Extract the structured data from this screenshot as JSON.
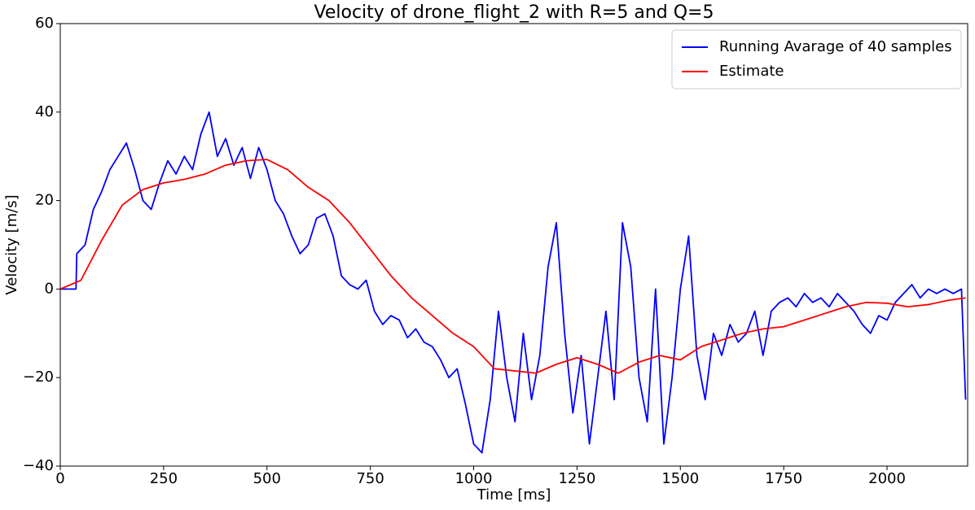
{
  "chart_data": {
    "type": "line",
    "title": "Velocity of drone_flight_2 with R=5 and Q=5",
    "xlabel": "Time [ms]",
    "ylabel": "Velocity [m/s]",
    "xlim": [
      0,
      2195
    ],
    "ylim": [
      -40,
      60
    ],
    "xticks": [
      0,
      250,
      500,
      750,
      1000,
      1250,
      1500,
      1750,
      2000
    ],
    "yticks": [
      {
        "value": -40,
        "label": "−40"
      },
      {
        "value": -20,
        "label": "−20"
      },
      0,
      20,
      40,
      60
    ],
    "legend": "upper right",
    "series": [
      {
        "name": "Running Avarage of 40 samples",
        "color": "#0000ff",
        "x": [
          0,
          20,
          38,
          40,
          60,
          80,
          100,
          120,
          140,
          160,
          180,
          200,
          220,
          240,
          260,
          280,
          300,
          320,
          340,
          360,
          380,
          400,
          420,
          440,
          460,
          480,
          500,
          520,
          540,
          560,
          580,
          600,
          620,
          640,
          660,
          680,
          700,
          720,
          740,
          760,
          780,
          800,
          820,
          840,
          860,
          880,
          900,
          920,
          940,
          960,
          980,
          1000,
          1020,
          1040,
          1060,
          1080,
          1100,
          1120,
          1140,
          1160,
          1180,
          1200,
          1220,
          1240,
          1260,
          1280,
          1300,
          1320,
          1340,
          1360,
          1380,
          1400,
          1420,
          1440,
          1460,
          1480,
          1500,
          1520,
          1540,
          1560,
          1580,
          1600,
          1620,
          1640,
          1660,
          1680,
          1700,
          1720,
          1740,
          1760,
          1780,
          1800,
          1820,
          1840,
          1860,
          1880,
          1900,
          1920,
          1940,
          1960,
          1980,
          2000,
          2020,
          2040,
          2060,
          2080,
          2100,
          2120,
          2140,
          2160,
          2180,
          2190
        ],
        "values": [
          0,
          0,
          0,
          8,
          10,
          18,
          22,
          27,
          30,
          33,
          27,
          20,
          18,
          24,
          29,
          26,
          30,
          27,
          35,
          40,
          30,
          34,
          28,
          32,
          25,
          32,
          27,
          20,
          17,
          12,
          8,
          10,
          16,
          17,
          12,
          3,
          1,
          0,
          2,
          -5,
          -8,
          -6,
          -7,
          -11,
          -9,
          -12,
          -13,
          -16,
          -20,
          -18,
          -26,
          -35,
          -37,
          -25,
          -5,
          -20,
          -30,
          -10,
          -25,
          -15,
          5,
          15,
          -10,
          -28,
          -15,
          -35,
          -20,
          -5,
          -25,
          15,
          5,
          -20,
          -30,
          0,
          -35,
          -20,
          0,
          12,
          -15,
          -25,
          -10,
          -15,
          -8,
          -12,
          -10,
          -5,
          -15,
          -5,
          -3,
          -2,
          -4,
          -1,
          -3,
          -2,
          -4,
          -1,
          -3,
          -5,
          -8,
          -10,
          -6,
          -7,
          -3,
          -1,
          1,
          -2,
          0,
          -1,
          0,
          -1,
          0,
          -25
        ]
      },
      {
        "name": "Estimate",
        "color": "#ff0000",
        "x": [
          0,
          50,
          100,
          150,
          200,
          250,
          300,
          350,
          400,
          450,
          500,
          550,
          600,
          650,
          700,
          750,
          800,
          850,
          900,
          950,
          1000,
          1050,
          1100,
          1150,
          1200,
          1250,
          1300,
          1350,
          1400,
          1450,
          1500,
          1550,
          1600,
          1650,
          1700,
          1750,
          1800,
          1850,
          1900,
          1950,
          2000,
          2050,
          2100,
          2150,
          2190
        ],
        "values": [
          0,
          2,
          11,
          19,
          22.5,
          24,
          24.8,
          26,
          28,
          29,
          29.3,
          27,
          23,
          20,
          15,
          9,
          3,
          -2,
          -6,
          -10,
          -13,
          -18,
          -18.5,
          -19,
          -17,
          -15.5,
          -17,
          -19,
          -16.5,
          -15,
          -16,
          -13,
          -11.5,
          -10,
          -9,
          -8.5,
          -7,
          -5.5,
          -4,
          -3,
          -3.2,
          -4,
          -3.5,
          -2.5,
          -2
        ]
      }
    ]
  }
}
